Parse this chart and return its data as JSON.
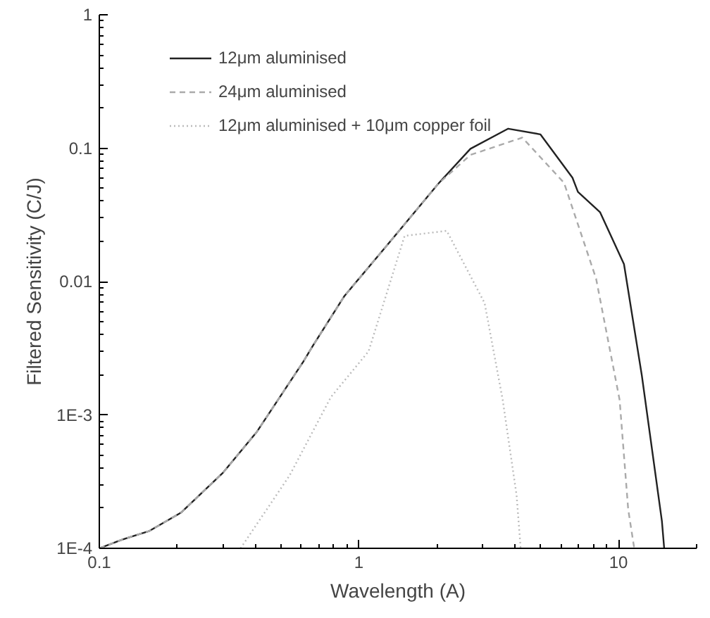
{
  "chart_data": {
    "type": "line",
    "xlabel": "Wavelength (A)",
    "ylabel": "Filtered Sensitivity (C/J)",
    "log": "xy",
    "grid": false,
    "legend": "top left",
    "xlim": [
      0.1,
      20
    ],
    "ylim": [
      0.0001,
      1
    ],
    "xticks": [
      0.1,
      1,
      10
    ],
    "yticks": [
      {
        "value": 0.0001,
        "label": "1E-4"
      },
      {
        "value": 0.001,
        "label": "1E-3"
      },
      0.01,
      0.1,
      1
    ],
    "series": [
      {
        "name": "12μm aluminised",
        "color": "#222222",
        "line_style": "solid",
        "x": [
          0.1,
          0.122,
          0.156,
          0.207,
          0.3,
          0.405,
          0.61,
          0.665,
          0.88,
          1.28,
          2.02,
          2.69,
          3.76,
          5.0,
          6.65,
          6.98,
          8.5,
          10.5,
          12.3,
          14.7,
          15.0
        ],
        "values": [
          0.0001,
          0.000116,
          0.000135,
          0.000186,
          0.00037,
          0.00075,
          0.0025,
          0.0033,
          0.0078,
          0.0186,
          0.054,
          0.099,
          0.14,
          0.127,
          0.06,
          0.047,
          0.033,
          0.0135,
          0.00198,
          0.00016,
          0.0001
        ]
      },
      {
        "name": "24μm aluminised",
        "color": "#aaaaaa",
        "line_style": "dashed",
        "x": [
          0.1,
          0.122,
          0.156,
          0.207,
          0.3,
          0.405,
          0.61,
          0.665,
          0.88,
          1.28,
          2.02,
          2.69,
          4.26,
          6.17,
          8.2,
          10.1,
          10.9,
          11.5
        ],
        "values": [
          0.0001,
          0.000116,
          0.000135,
          0.000186,
          0.00037,
          0.00075,
          0.0025,
          0.0033,
          0.0078,
          0.0186,
          0.054,
          0.089,
          0.12,
          0.055,
          0.0105,
          0.0013,
          0.000196,
          0.0001
        ]
      },
      {
        "name": "12μm aluminised + 10μm copper foil",
        "color": "#bbbbbb",
        "line_style": "dotted",
        "x": [
          0.35,
          0.54,
          0.78,
          1.09,
          1.5,
          2.18,
          3.05,
          3.58,
          4.05,
          4.2
        ],
        "values": [
          0.0001,
          0.00035,
          0.00136,
          0.003,
          0.022,
          0.024,
          0.0069,
          0.0013,
          0.00025,
          0.0001
        ]
      }
    ]
  }
}
